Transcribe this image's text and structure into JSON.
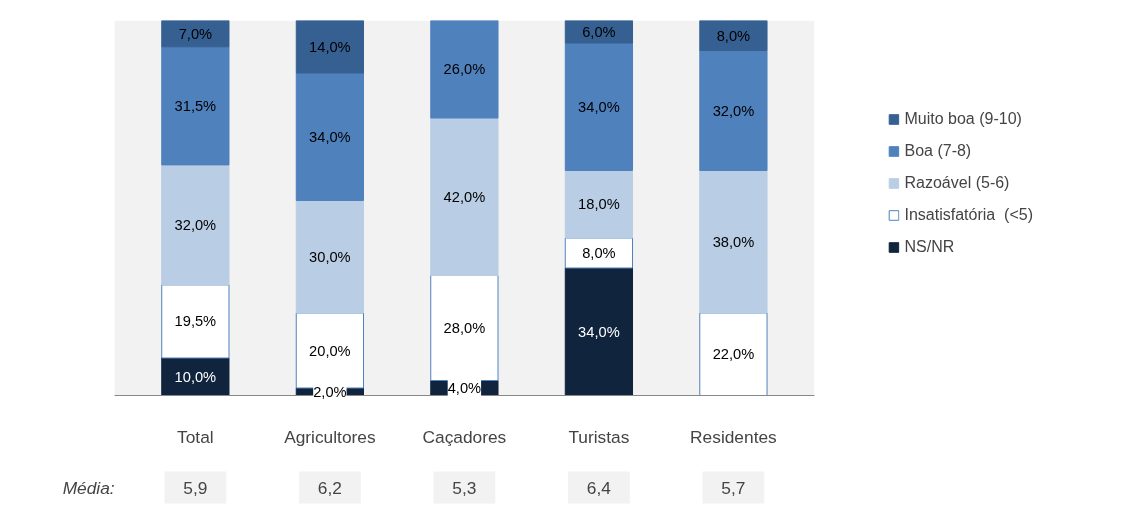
{
  "chart_data": {
    "type": "bar",
    "stacked": true,
    "data_labels": true,
    "legend": "right",
    "grid": false,
    "categories": [
      "Total",
      "Agricultores",
      "Caçadores",
      "Turistas",
      "Residentes"
    ],
    "series": [
      {
        "name": "NS/NR",
        "color": "#10243e",
        "values": [
          10.0,
          2.0,
          4.0,
          34.0,
          null
        ],
        "value_labels": [
          "10,0%",
          "2,0%",
          "4,0%",
          "34,0%",
          null
        ]
      },
      {
        "name": "Insatisfatória  (<5)",
        "color": "#ffffff",
        "values": [
          19.5,
          20.0,
          28.0,
          8.0,
          22.0
        ],
        "value_labels": [
          "19,5%",
          "20,0%",
          "28,0%",
          "8,0%",
          "22,0%"
        ]
      },
      {
        "name": "Razoável (5-6)",
        "color": "#b9cde5",
        "values": [
          32.0,
          30.0,
          42.0,
          18.0,
          38.0
        ],
        "value_labels": [
          "32,0%",
          "30,0%",
          "42,0%",
          "18,0%",
          "38,0%"
        ]
      },
      {
        "name": "Boa (7-8)",
        "color": "#4f81bd",
        "values": [
          31.5,
          34.0,
          26.0,
          34.0,
          32.0
        ],
        "value_labels": [
          "31,5%",
          "34,0%",
          "26,0%",
          "34,0%",
          "32,0%"
        ]
      },
      {
        "name": "Muito boa (9-10)",
        "color": "#366092",
        "values": [
          7.0,
          14.0,
          null,
          6.0,
          8.0
        ],
        "value_labels": [
          "7,0%",
          "14,0%",
          null,
          "6,0%",
          "8,0%"
        ]
      }
    ],
    "annotations": [
      "Média:",
      "5,9",
      "6,2",
      "5,3",
      "6,4",
      "5,7"
    ]
  }
}
